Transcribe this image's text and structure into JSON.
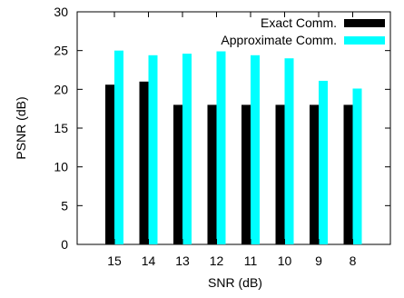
{
  "chart_data": {
    "type": "bar",
    "xlabel": "SNR (dB)",
    "ylabel": "PSNR (dB)",
    "ylim": [
      0,
      30
    ],
    "yticks": [
      0,
      5,
      10,
      15,
      20,
      25,
      30
    ],
    "categories": [
      "15",
      "14",
      "13",
      "12",
      "11",
      "10",
      "9",
      "8"
    ],
    "series": [
      {
        "name": "Exact Comm.",
        "color": "#000000",
        "values": [
          20.6,
          21.0,
          18.0,
          18.0,
          18.0,
          18.0,
          18.0,
          18.0
        ]
      },
      {
        "name": "Approximate Comm.",
        "color": "#00ffff",
        "values": [
          25.0,
          24.4,
          24.6,
          24.9,
          24.4,
          24.0,
          21.1,
          20.1
        ]
      }
    ],
    "legend_position": "top-right",
    "grid": false
  }
}
